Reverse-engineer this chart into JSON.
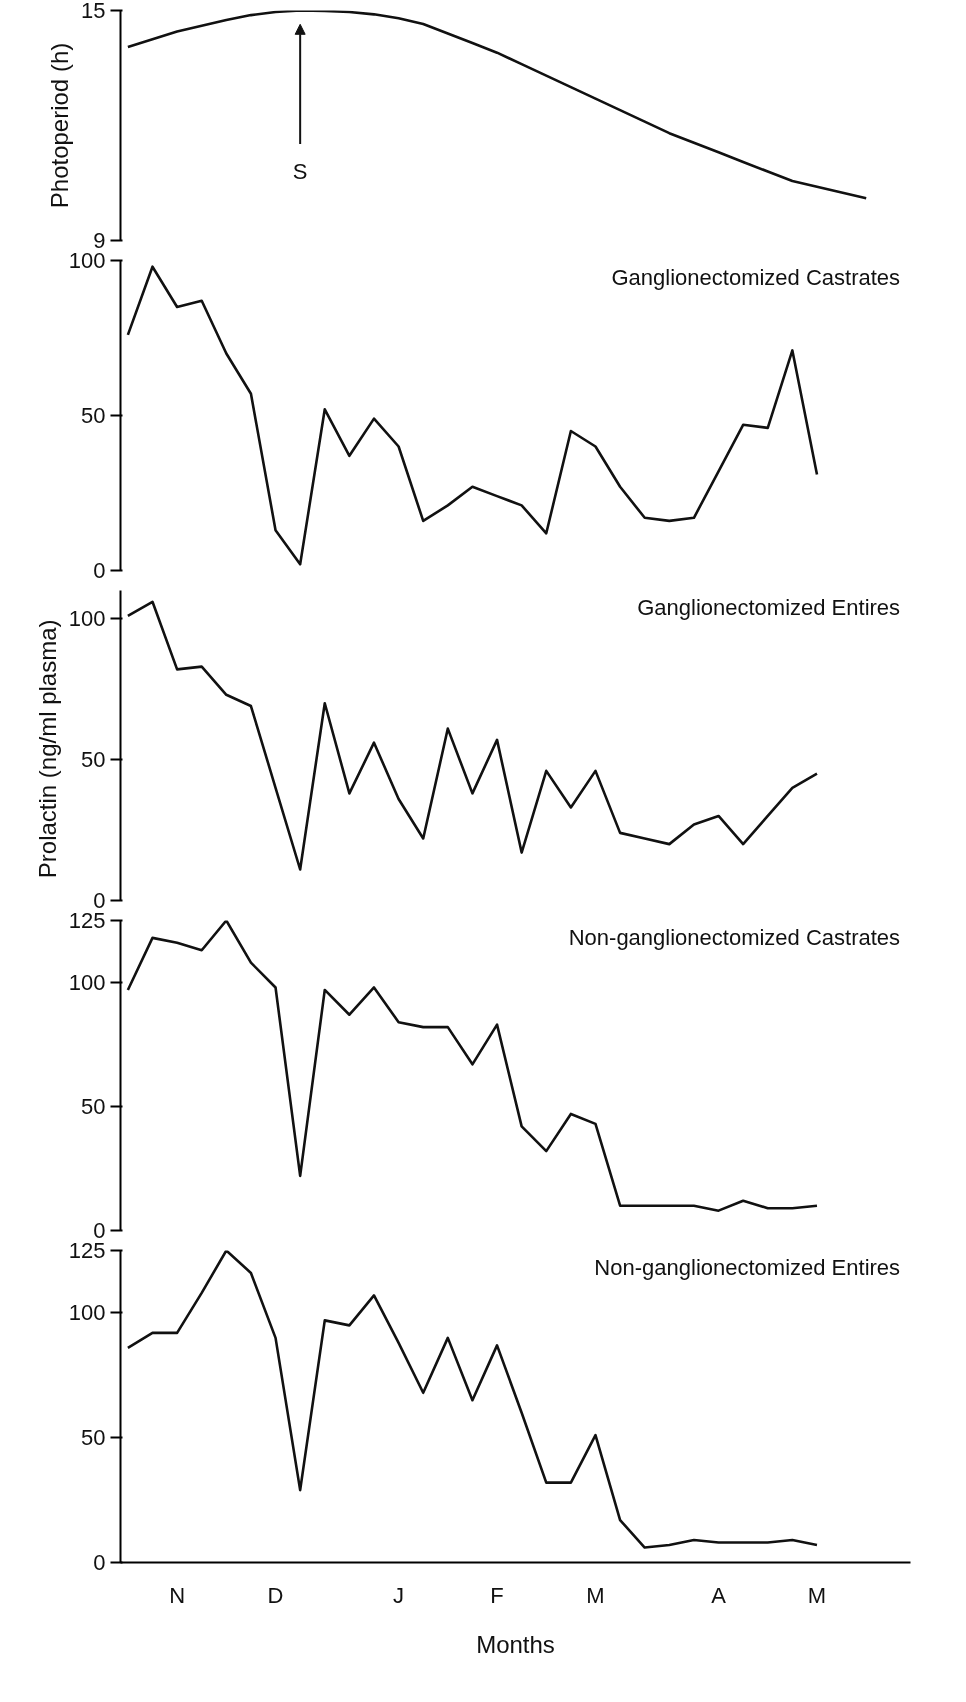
{
  "chart_data": [
    {
      "type": "line",
      "ylabel": "Photoperiod (h)",
      "ylim": [
        9,
        15
      ],
      "yticks": [
        9,
        15
      ],
      "tick_labels": "y",
      "grid": false,
      "marker": "none",
      "categories": [
        null,
        null,
        null,
        null,
        null,
        null,
        null,
        null,
        null,
        null,
        null,
        null,
        null,
        null,
        null,
        null,
        null,
        null,
        null,
        null,
        null,
        null,
        null,
        null,
        null,
        null,
        null,
        null,
        null,
        null,
        null
      ],
      "series": [
        {
          "color": "#111111",
          "values": [
            14.05,
            14.25,
            14.45,
            14.6,
            14.75,
            14.88,
            14.96,
            15.0,
            14.99,
            14.96,
            14.9,
            14.8,
            14.65,
            14.4,
            14.15,
            13.9,
            13.6,
            13.3,
            13.0,
            12.7,
            12.4,
            12.1,
            11.8,
            11.55,
            11.3,
            11.05,
            10.8,
            10.55,
            10.4,
            10.25,
            10.1
          ]
        }
      ],
      "annotations": [
        "S"
      ]
    },
    {
      "type": "line",
      "title": "Ganglionectomized  Castrates",
      "ylim": [
        0,
        100
      ],
      "yticks": [
        0,
        50,
        100
      ],
      "tick_labels": "y",
      "grid": false,
      "marker": "none",
      "categories": [
        null,
        null,
        null,
        null,
        null,
        null,
        null,
        null,
        null,
        null,
        null,
        null,
        null,
        null,
        null,
        null,
        null,
        null,
        null,
        null,
        null,
        null,
        null,
        null,
        null,
        null,
        null,
        null,
        null,
        null,
        null
      ],
      "series": [
        {
          "color": "#111111",
          "values": [
            76,
            98,
            85,
            87,
            70,
            57,
            13,
            2,
            52,
            37,
            49,
            40,
            16,
            21,
            27,
            24,
            21,
            12,
            45,
            40,
            27,
            17,
            16,
            17,
            32,
            47,
            46,
            71,
            31,
            null,
            null
          ]
        }
      ]
    },
    {
      "type": "line",
      "title": "Ganglionectomized  Entires",
      "ylabel": "Prolactin  (ng/ml plasma)",
      "ylim": [
        0,
        110
      ],
      "yticks": [
        0,
        50,
        100
      ],
      "tick_labels": "y",
      "grid": false,
      "marker": "none",
      "categories": [
        null,
        null,
        null,
        null,
        null,
        null,
        null,
        null,
        null,
        null,
        null,
        null,
        null,
        null,
        null,
        null,
        null,
        null,
        null,
        null,
        null,
        null,
        null,
        null,
        null,
        null,
        null,
        null,
        null,
        null,
        null
      ],
      "series": [
        {
          "color": "#111111",
          "values": [
            101,
            106,
            82,
            83,
            73,
            69,
            40,
            11,
            70,
            38,
            56,
            36,
            22,
            61,
            38,
            57,
            17,
            46,
            33,
            46,
            24,
            22,
            20,
            27,
            30,
            20,
            30,
            40,
            45,
            null,
            null
          ]
        }
      ]
    },
    {
      "type": "line",
      "title": "Non-ganglionectomized  Castrates",
      "ylim": [
        0,
        125
      ],
      "yticks": [
        0,
        50,
        100,
        125
      ],
      "tick_labels": "y",
      "grid": false,
      "marker": "none",
      "categories": [
        null,
        null,
        null,
        null,
        null,
        null,
        null,
        null,
        null,
        null,
        null,
        null,
        null,
        null,
        null,
        null,
        null,
        null,
        null,
        null,
        null,
        null,
        null,
        null,
        null,
        null,
        null,
        null,
        null,
        null,
        null
      ],
      "series": [
        {
          "color": "#111111",
          "values": [
            97,
            118,
            116,
            113,
            125,
            108,
            98,
            22,
            97,
            87,
            98,
            84,
            82,
            82,
            67,
            83,
            42,
            32,
            47,
            43,
            10,
            10,
            10,
            10,
            8,
            12,
            9,
            9,
            10,
            null,
            null
          ]
        }
      ]
    },
    {
      "type": "line",
      "title": "Non-ganglionectomized  Entires",
      "xlabel": "Months",
      "ylim": [
        0,
        125
      ],
      "yticks": [
        0,
        50,
        100,
        125
      ],
      "grid": false,
      "marker": "none",
      "categories": [
        null,
        null,
        "N",
        null,
        null,
        null,
        "D",
        null,
        null,
        null,
        null,
        "J",
        null,
        null,
        null,
        "F",
        null,
        null,
        null,
        "M",
        null,
        null,
        null,
        null,
        "A",
        null,
        null,
        null,
        "M",
        null,
        null
      ],
      "series": [
        {
          "color": "#111111",
          "values": [
            86,
            92,
            92,
            108,
            125,
            116,
            90,
            29,
            97,
            95,
            107,
            88,
            68,
            90,
            65,
            87,
            60,
            32,
            32,
            51,
            17,
            6,
            7,
            9,
            8,
            8,
            8,
            9,
            7,
            null,
            null
          ]
        }
      ]
    }
  ]
}
